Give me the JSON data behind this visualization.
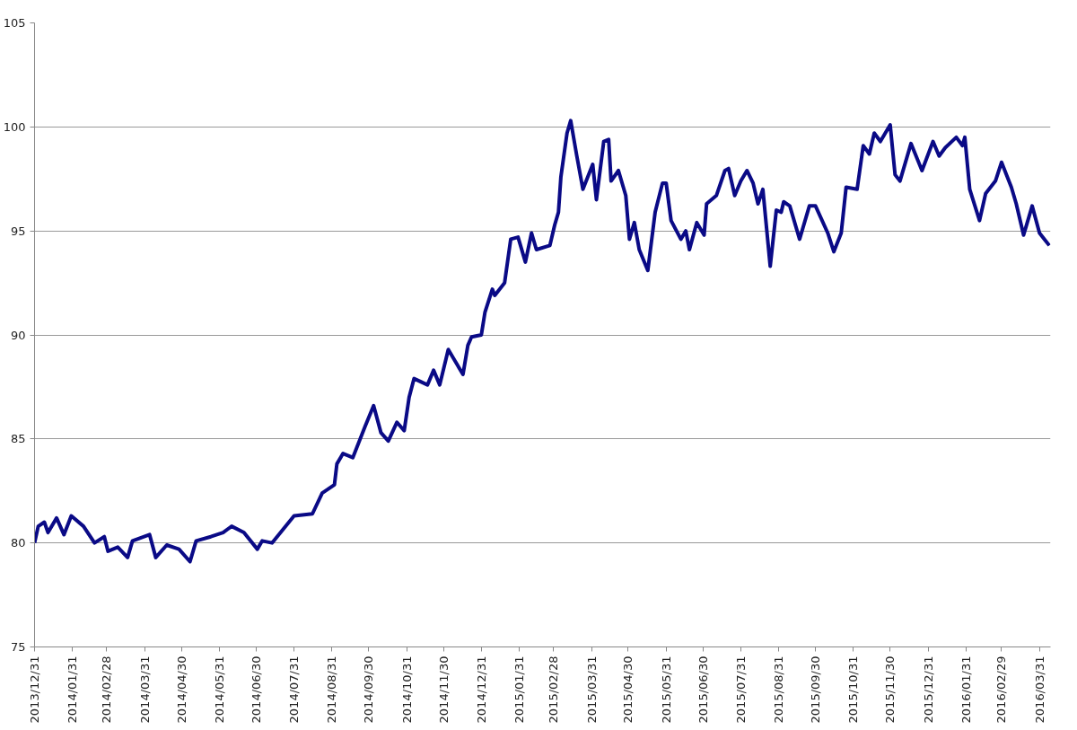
{
  "chart_data": {
    "type": "line",
    "x": [
      "2013-12-31",
      "2014-01-03",
      "2014-01-08",
      "2014-01-11",
      "2014-01-18",
      "2014-01-24",
      "2014-01-30",
      "2014-02-09",
      "2014-02-18",
      "2014-02-26",
      "2014-03-01",
      "2014-03-09",
      "2014-03-17",
      "2014-03-21",
      "2014-04-04",
      "2014-04-09",
      "2014-04-18",
      "2014-04-28",
      "2014-05-07",
      "2014-05-12",
      "2014-05-24",
      "2014-06-03",
      "2014-06-10",
      "2014-06-20",
      "2014-07-01",
      "2014-07-05",
      "2014-07-13",
      "2014-07-24",
      "2014-07-31",
      "2014-08-15",
      "2014-08-23",
      "2014-09-02",
      "2014-09-04",
      "2014-09-09",
      "2014-09-17",
      "2014-09-27",
      "2014-10-04",
      "2014-10-10",
      "2014-10-16",
      "2014-10-23",
      "2014-10-29",
      "2014-11-02",
      "2014-11-06",
      "2014-11-17",
      "2014-11-22",
      "2014-11-27",
      "2014-12-04",
      "2014-12-16",
      "2014-12-20",
      "2014-12-23",
      "2014-12-31",
      "2015-01-03",
      "2015-01-09",
      "2015-01-11",
      "2015-01-19",
      "2015-01-24",
      "2015-01-30",
      "2015-02-05",
      "2015-02-10",
      "2015-02-14",
      "2015-02-25",
      "2015-03-01",
      "2015-03-04",
      "2015-03-06",
      "2015-03-11",
      "2015-03-14",
      "2015-03-19",
      "2015-03-24",
      "2015-04-01",
      "2015-04-04",
      "2015-04-10",
      "2015-04-14",
      "2015-04-16",
      "2015-04-22",
      "2015-04-28",
      "2015-05-01",
      "2015-05-05",
      "2015-05-09",
      "2015-05-16",
      "2015-05-22",
      "2015-05-28",
      "2015-05-31",
      "2015-06-04",
      "2015-06-12",
      "2015-06-16",
      "2015-06-19",
      "2015-06-25",
      "2015-07-01",
      "2015-07-03",
      "2015-07-11",
      "2015-07-18",
      "2015-07-21",
      "2015-07-26",
      "2015-07-31",
      "2015-08-05",
      "2015-08-10",
      "2015-08-14",
      "2015-08-18",
      "2015-08-24",
      "2015-08-29",
      "2015-09-02",
      "2015-09-04",
      "2015-09-09",
      "2015-09-17",
      "2015-09-25",
      "2015-09-30",
      "2015-10-10",
      "2015-10-15",
      "2015-10-21",
      "2015-10-25",
      "2015-11-03",
      "2015-11-08",
      "2015-11-13",
      "2015-11-17",
      "2015-11-22",
      "2015-11-30",
      "2015-12-04",
      "2015-12-08",
      "2015-12-17",
      "2015-12-26",
      "2016-01-04",
      "2016-01-09",
      "2016-01-14",
      "2016-01-23",
      "2016-01-28",
      "2016-01-30",
      "2016-02-03",
      "2016-02-11",
      "2016-02-16",
      "2016-02-24",
      "2016-02-29",
      "2016-03-08",
      "2016-03-12",
      "2016-03-18",
      "2016-03-25",
      "2016-03-31",
      "2016-04-04",
      "2016-04-08"
    ],
    "values": [
      80.0,
      80.8,
      81.0,
      80.5,
      81.2,
      80.4,
      81.3,
      80.8,
      80.0,
      80.3,
      79.6,
      79.8,
      79.3,
      80.1,
      80.4,
      79.3,
      79.9,
      79.7,
      79.1,
      80.1,
      80.3,
      80.5,
      80.8,
      80.5,
      79.7,
      80.1,
      80.0,
      80.8,
      81.3,
      81.4,
      82.4,
      82.8,
      83.8,
      84.3,
      84.1,
      85.6,
      86.6,
      85.3,
      84.9,
      85.8,
      85.4,
      87.0,
      87.9,
      87.6,
      88.3,
      87.6,
      89.3,
      88.1,
      89.5,
      89.9,
      90.0,
      91.1,
      92.2,
      91.9,
      92.5,
      94.6,
      94.7,
      93.5,
      94.9,
      94.1,
      94.3,
      95.3,
      95.9,
      97.6,
      99.7,
      100.3,
      98.6,
      97.0,
      98.2,
      96.5,
      99.3,
      99.4,
      97.4,
      97.9,
      96.7,
      94.6,
      95.4,
      94.1,
      93.1,
      95.9,
      97.3,
      97.3,
      95.5,
      94.6,
      95.0,
      94.1,
      95.4,
      94.8,
      96.3,
      96.7,
      97.9,
      98.0,
      96.7,
      97.4,
      97.9,
      97.3,
      96.3,
      97.0,
      93.3,
      96.0,
      95.9,
      96.4,
      96.2,
      94.6,
      96.2,
      96.2,
      94.9,
      94.0,
      94.9,
      97.1,
      97.0,
      99.1,
      98.7,
      99.7,
      99.3,
      100.1,
      97.7,
      97.4,
      99.2,
      97.9,
      99.3,
      98.6,
      99.0,
      99.5,
      99.1,
      99.5,
      97.0,
      95.5,
      96.8,
      97.4,
      98.3,
      97.1,
      96.3,
      94.8,
      96.2,
      94.9,
      94.6,
      94.3
    ],
    "color": "#0a0a86",
    "xlim": [
      "2013-12-31",
      "2016-04-09"
    ],
    "ylim": [
      75,
      105
    ],
    "yticks": [
      75,
      80,
      85,
      90,
      95,
      100,
      105
    ],
    "xticks": [
      {
        "value": "2013-12-31",
        "label": "2013/12/31"
      },
      {
        "value": "2014-01-31",
        "label": "2014/01/31"
      },
      {
        "value": "2014-02-28",
        "label": "2014/02/28"
      },
      {
        "value": "2014-03-31",
        "label": "2014/03/31"
      },
      {
        "value": "2014-04-30",
        "label": "2014/04/30"
      },
      {
        "value": "2014-05-31",
        "label": "2014/05/31"
      },
      {
        "value": "2014-06-30",
        "label": "2014/06/30"
      },
      {
        "value": "2014-07-31",
        "label": "2014/07/31"
      },
      {
        "value": "2014-08-31",
        "label": "2014/08/31"
      },
      {
        "value": "2014-09-30",
        "label": "2014/09/30"
      },
      {
        "value": "2014-10-31",
        "label": "2014/10/31"
      },
      {
        "value": "2014-11-30",
        "label": "2014/11/30"
      },
      {
        "value": "2014-12-31",
        "label": "2014/12/31"
      },
      {
        "value": "2015-01-31",
        "label": "2015/01/31"
      },
      {
        "value": "2015-02-28",
        "label": "2015/02/28"
      },
      {
        "value": "2015-03-31",
        "label": "2015/03/31"
      },
      {
        "value": "2015-04-30",
        "label": "2015/04/30"
      },
      {
        "value": "2015-05-31",
        "label": "2015/05/31"
      },
      {
        "value": "2015-06-30",
        "label": "2015/06/30"
      },
      {
        "value": "2015-07-31",
        "label": "2015/07/31"
      },
      {
        "value": "2015-08-31",
        "label": "2015/08/31"
      },
      {
        "value": "2015-09-30",
        "label": "2015/09/30"
      },
      {
        "value": "2015-10-31",
        "label": "2015/10/31"
      },
      {
        "value": "2015-11-30",
        "label": "2015/11/30"
      },
      {
        "value": "2015-12-31",
        "label": "2015/12/31"
      },
      {
        "value": "2016-01-31",
        "label": "2016/01/31"
      },
      {
        "value": "2016-02-29",
        "label": "2016/02/29"
      },
      {
        "value": "2016-03-31",
        "label": "2016/03/31"
      }
    ],
    "grid": "y"
  }
}
